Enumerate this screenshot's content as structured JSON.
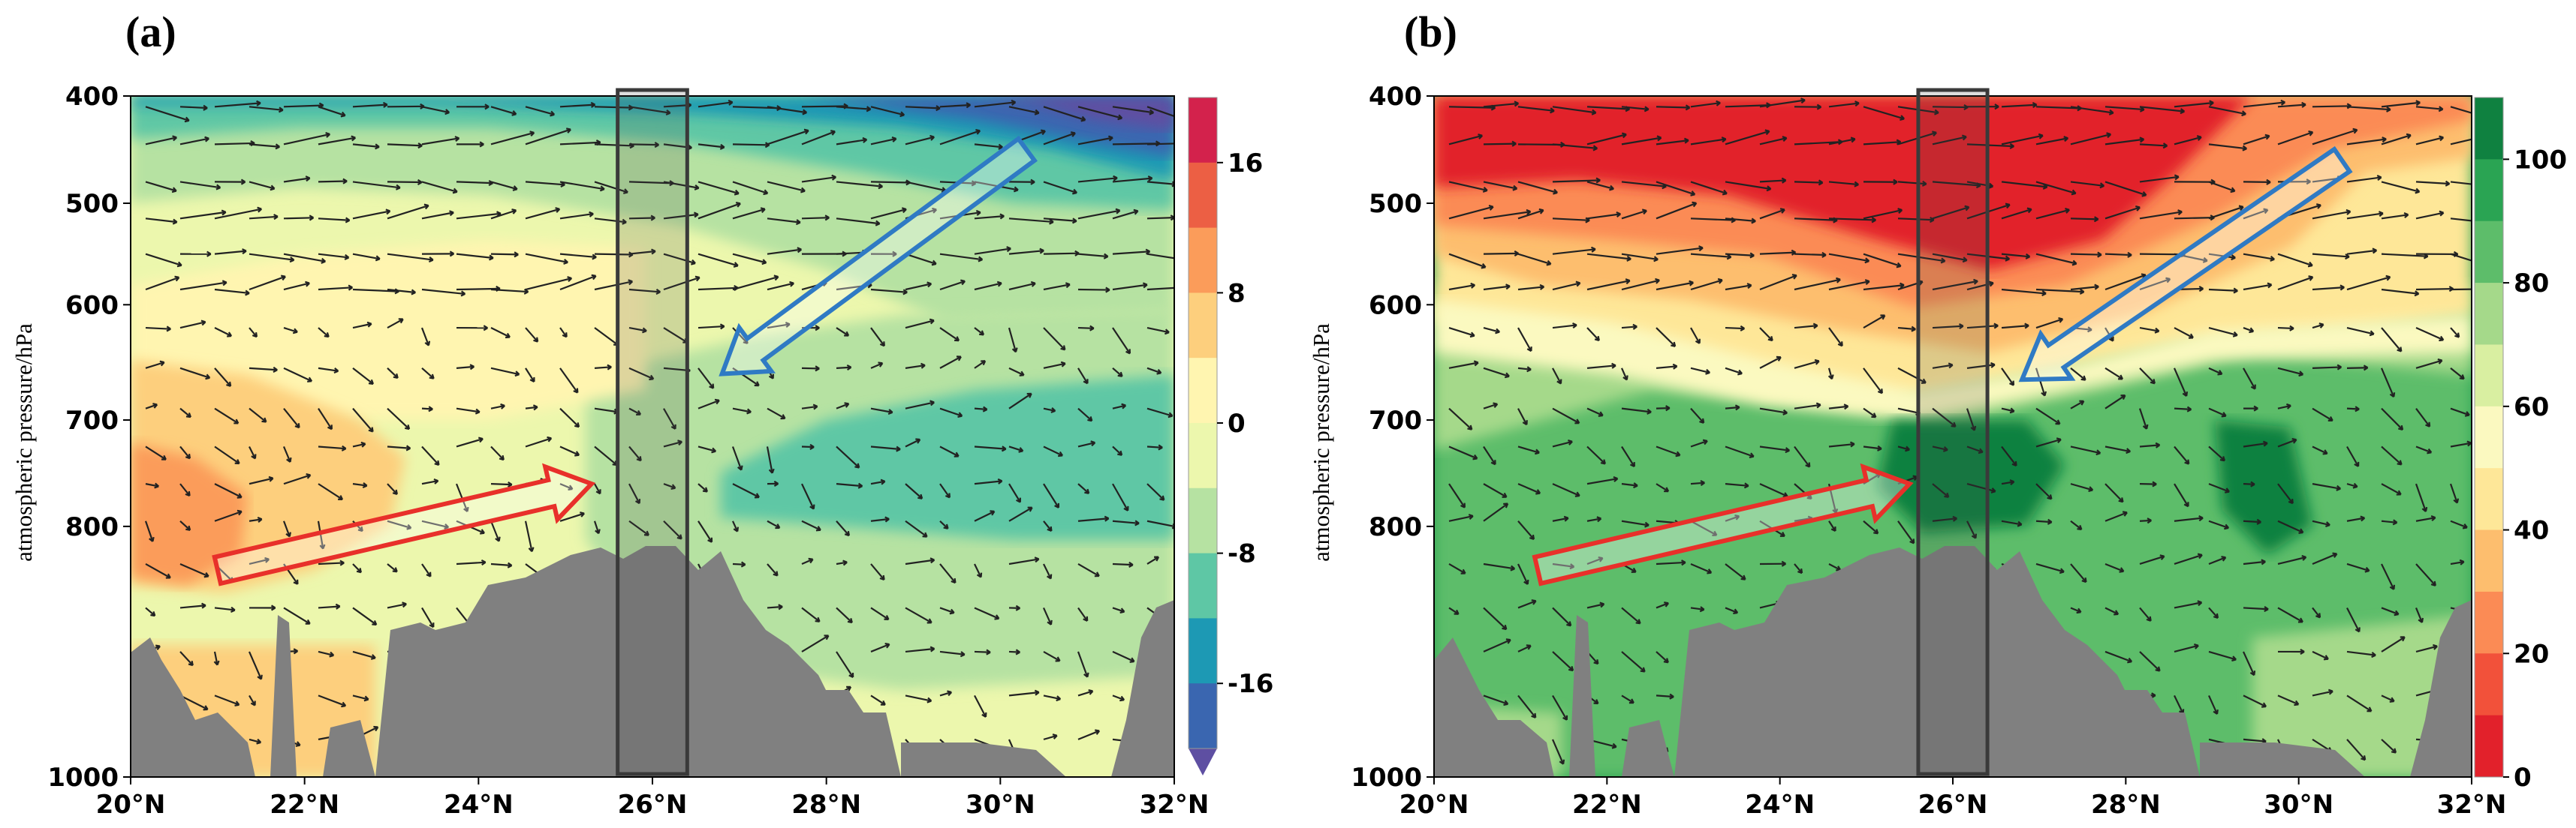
{
  "chart_data": [
    {
      "type": "heatmap",
      "panel_label": "(a)",
      "ylabel": "atmospheric pressure/hPa",
      "x_ticks": [
        "20°N",
        "22°N",
        "24°N",
        "26°N",
        "28°N",
        "30°N",
        "32°N"
      ],
      "x_values": [
        20,
        22,
        24,
        26,
        28,
        30,
        32
      ],
      "xlim": [
        20,
        32
      ],
      "y_ticks": [
        "400",
        "500",
        "600",
        "700",
        "800",
        "1000"
      ],
      "y_values": [
        400,
        500,
        600,
        700,
        800,
        1000
      ],
      "ylim": [
        400,
        1000
      ],
      "colorbar": {
        "ticks": [
          "16",
          "8",
          "0",
          "-8",
          "-16"
        ],
        "tick_values": [
          16,
          8,
          0,
          -8,
          -16
        ],
        "range": [
          -20,
          20
        ],
        "levels": 10,
        "extend": "min",
        "colors": [
          "#5e4fa2",
          "#3a66b0",
          "#1d99b4",
          "#5ec7a5",
          "#b6e2a2",
          "#ecf7ad",
          "#fff5b0",
          "#fdcf7d",
          "#fb9c5a",
          "#ec5f44",
          "#d3224c"
        ]
      },
      "highlight_box_lat": [
        25.6,
        26.4
      ],
      "arrows": [
        {
          "name": "low-level-inflow",
          "color": "#e8302a",
          "from": [
            21,
            835
          ],
          "to": [
            25.3,
            760
          ]
        },
        {
          "name": "upper-level-descent",
          "color": "#2f7ac4",
          "from": [
            30.3,
            450
          ],
          "to": [
            26.8,
            660
          ]
        }
      ]
    },
    {
      "type": "heatmap",
      "panel_label": "(b)",
      "ylabel": "atmospheric pressure/hPa",
      "x_ticks": [
        "20°N",
        "22°N",
        "24°N",
        "26°N",
        "28°N",
        "30°N",
        "32°N"
      ],
      "x_values": [
        20,
        22,
        24,
        26,
        28,
        30,
        32
      ],
      "xlim": [
        20,
        32
      ],
      "y_ticks": [
        "400",
        "500",
        "600",
        "700",
        "800",
        "1000"
      ],
      "y_values": [
        400,
        500,
        600,
        700,
        800,
        1000
      ],
      "ylim": [
        400,
        1000
      ],
      "colorbar": {
        "ticks": [
          "100",
          "80",
          "60",
          "40",
          "20",
          "0"
        ],
        "tick_values": [
          100,
          80,
          60,
          40,
          20,
          0
        ],
        "range": [
          0,
          110
        ],
        "levels": 11,
        "extend": "neither",
        "colors": [
          "#e2212b",
          "#f2513a",
          "#fb8b55",
          "#fdbe6e",
          "#fee798",
          "#fbf9c0",
          "#d9efa1",
          "#a5d98a",
          "#5dbd6a",
          "#2aa453",
          "#0f8140"
        ]
      },
      "highlight_box_lat": [
        25.6,
        26.4
      ],
      "arrows": [
        {
          "name": "low-level-inflow",
          "color": "#e8302a",
          "from": [
            21.2,
            835
          ],
          "to": [
            25.5,
            760
          ]
        },
        {
          "name": "upper-level-descent",
          "color": "#2f7ac4",
          "from": [
            30.5,
            460
          ],
          "to": [
            26.8,
            665
          ]
        }
      ]
    }
  ]
}
